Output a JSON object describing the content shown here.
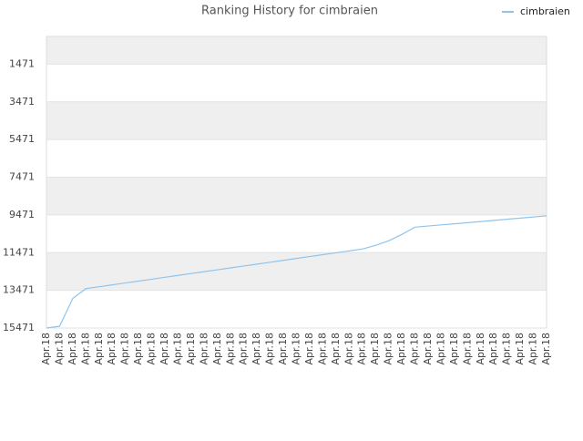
{
  "chart_data": {
    "type": "line",
    "title": "Ranking History for cimbraien",
    "categories": [
      "Apr.18",
      "Apr.18",
      "Apr.18",
      "Apr.18",
      "Apr.18",
      "Apr.18",
      "Apr.18",
      "Apr.18",
      "Apr.18",
      "Apr.18",
      "Apr.18",
      "Apr.18",
      "Apr.18",
      "Apr.18",
      "Apr.18",
      "Apr.18",
      "Apr.18",
      "Apr.18",
      "Apr.18",
      "Apr.18",
      "Apr.18",
      "Apr.18",
      "Apr.18",
      "Apr.18",
      "Apr.18",
      "Apr.18",
      "Apr.18",
      "Apr.18",
      "Apr.18",
      "Apr.18",
      "Apr.18",
      "Apr.18",
      "Apr.18",
      "Apr.18",
      "Apr.18",
      "Apr.18",
      "Apr.18",
      "Apr.18",
      "Apr.18"
    ],
    "series": [
      {
        "name": "cimbraien",
        "color": "#90c4ec",
        "values": [
          15471,
          15375,
          13900,
          13380,
          13280,
          13180,
          13080,
          12980,
          12880,
          12780,
          12680,
          12580,
          12480,
          12380,
          12280,
          12180,
          12080,
          11980,
          11880,
          11780,
          11680,
          11580,
          11480,
          11380,
          11280,
          11085,
          10843,
          10505,
          10120,
          10060,
          10000,
          9940,
          9880,
          9820,
          9760,
          9700,
          9640,
          9580,
          9520
        ]
      }
    ],
    "ylim": [
      15471,
      0
    ],
    "yticks": [
      1471,
      3471,
      5471,
      7471,
      9471,
      11471,
      13471,
      15471
    ],
    "grid": true,
    "legend": "top-right"
  }
}
